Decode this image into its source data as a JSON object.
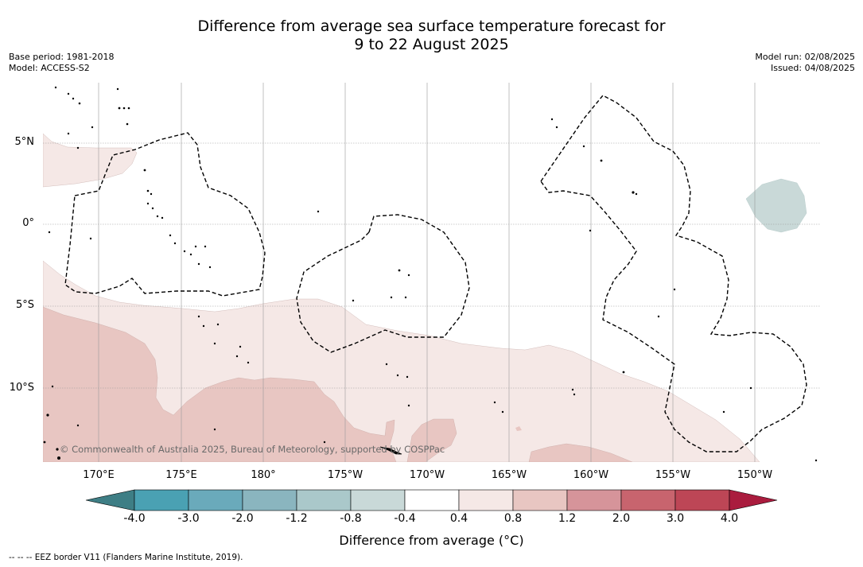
{
  "title": {
    "line1": "Difference from average sea surface temperature forecast for",
    "line2": "9 to 22 August 2025"
  },
  "meta_left": {
    "base_period": "Base period: 1981-2018",
    "model": "Model: ACCESS-S2"
  },
  "meta_right": {
    "model_run": "Model run: 02/08/2025",
    "issued": "Issued: 04/08/2025"
  },
  "map": {
    "lat_labels": [
      "5°N",
      "0°",
      "5°S",
      "10°S"
    ],
    "lon_labels": [
      "170°E",
      "175°E",
      "180°",
      "175°W",
      "170°W",
      "165°W",
      "160°W",
      "155°W",
      "150°W"
    ],
    "copyright": "© Commonwealth of Australia 2025, Bureau of Meteorology, supported by COSPPac",
    "colors": {
      "anomaly_0.4_0.8": "#f5e8e6",
      "anomaly_0.8_1.2": "#e8c6c2",
      "anomaly_-0.8_-0.4": "#c9d9d8",
      "eez_border": "#000000",
      "grid": "#999999"
    }
  },
  "colorbar": {
    "labels": [
      "-4.0",
      "-3.0",
      "-2.0",
      "-1.2",
      "-0.8",
      "-0.4",
      "0.4",
      "0.8",
      "1.2",
      "2.0",
      "3.0",
      "4.0"
    ],
    "colors": [
      "#3e7e85",
      "#4aa1b3",
      "#6aaabb",
      "#8ab5bf",
      "#aac8ca",
      "#c9d9d8",
      "#ffffff",
      "#f5e8e6",
      "#e8c6c2",
      "#d6949a",
      "#c8646e",
      "#bd4656",
      "#aa1c3e"
    ],
    "title": "Difference from average (°C)"
  },
  "footnote": "--  --  -- EEZ border V11 (Flanders Marine Institute, 2019)."
}
